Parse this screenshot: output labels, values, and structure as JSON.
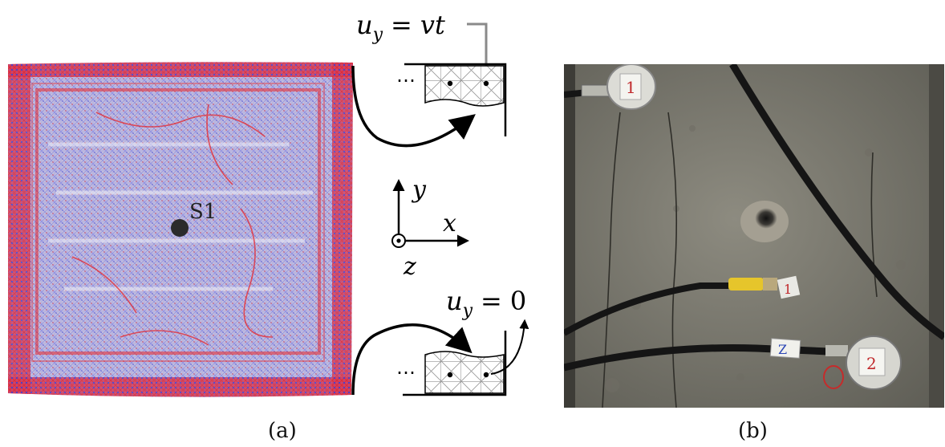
{
  "panel_a": {
    "sensor_label": "S1",
    "top_boundary_label": "u_y = vt",
    "top_boundary": {
      "lhs_main": "u",
      "lhs_sub": "y",
      "eq": "=",
      "rhs": "vt"
    },
    "bottom_boundary_label": "u_y = 0",
    "bottom_boundary": {
      "lhs_main": "u",
      "lhs_sub": "y",
      "eq": "=",
      "rhs": "0"
    },
    "ellipsis": "⋯",
    "axes": {
      "x": "x",
      "y": "y",
      "z": "z"
    },
    "caption": "(a)"
  },
  "panel_b": {
    "sensor_labels": [
      "1",
      "1",
      "Z",
      "2"
    ],
    "caption": "(b)"
  },
  "colors": {
    "mesh_red": "#e8262b",
    "mesh_blue": "#3b3fd8",
    "mesh_bg": "#b9b3d6",
    "sensor": "#2b2b2b",
    "concrete": "#7e7d73",
    "cable": "#151515",
    "connector_yellow": "#e6c52b"
  }
}
